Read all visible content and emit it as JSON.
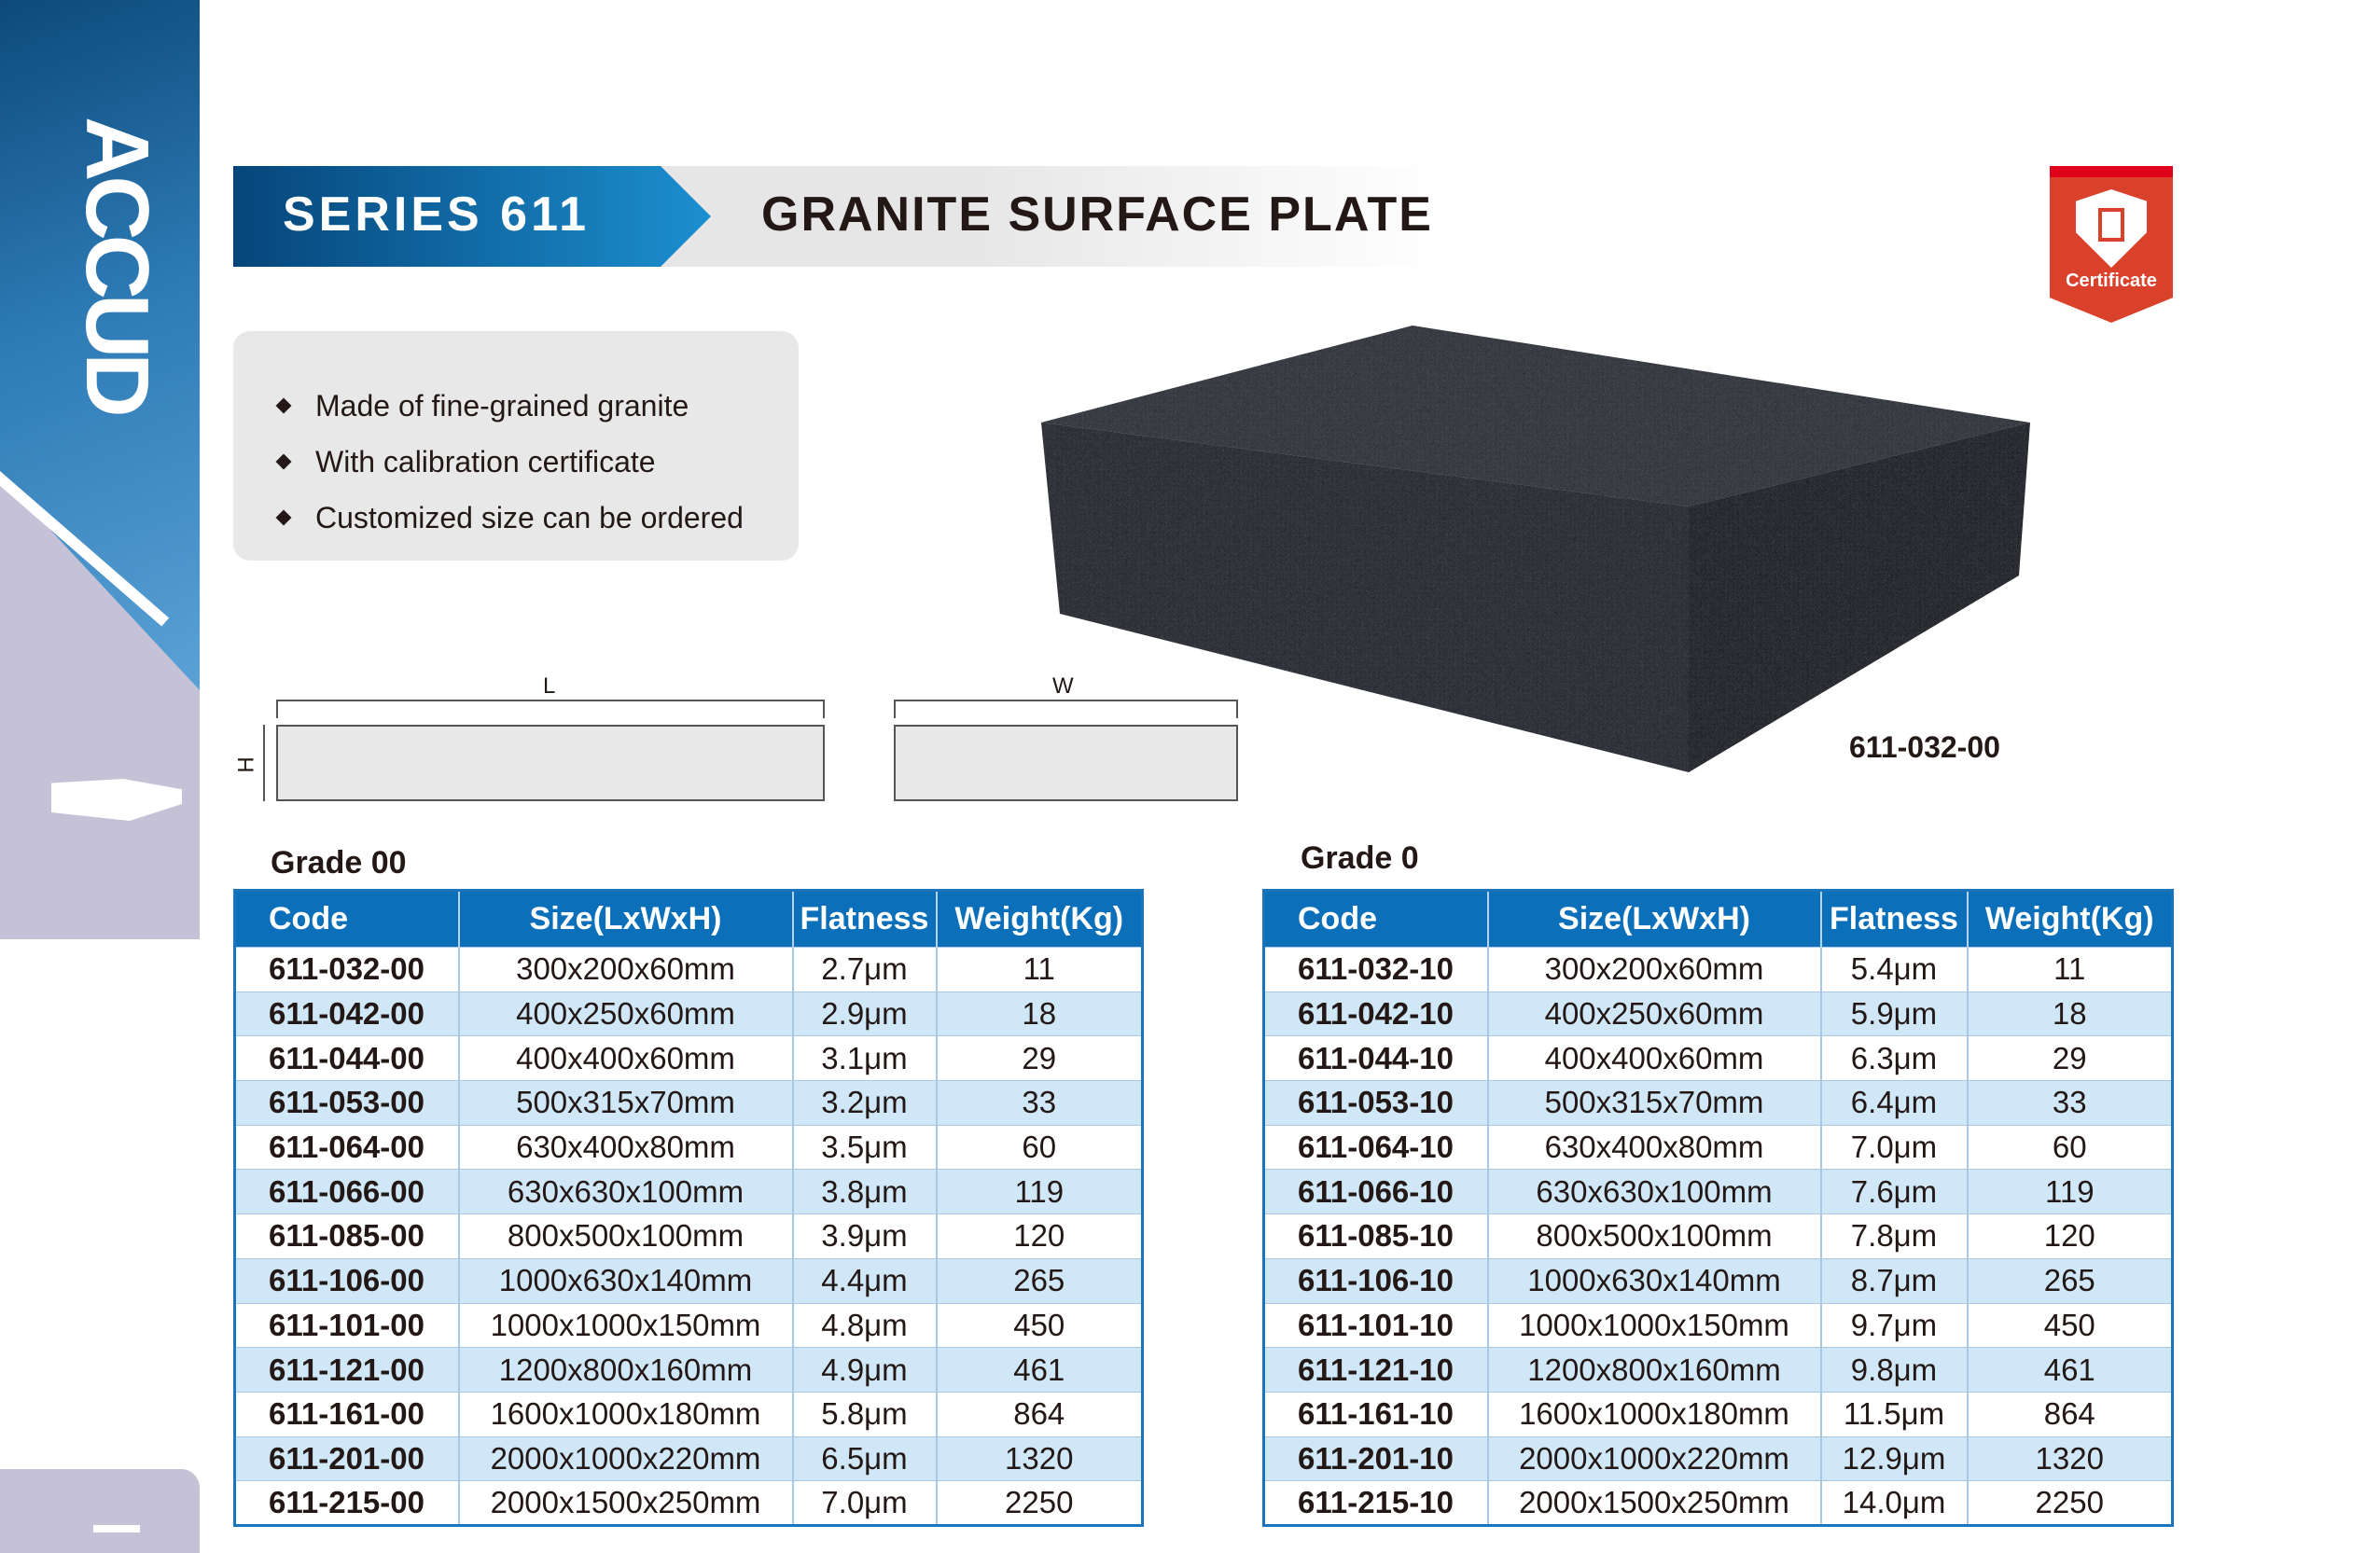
{
  "brand": "ACCUD",
  "header": {
    "series": "SERIES 611",
    "title": "GRANITE SURFACE PLATE"
  },
  "certificate": {
    "label": "Certificate",
    "icon": "certificate-shield-icon",
    "color": "#d9412b"
  },
  "features": [
    "Made of fine-grained granite",
    "With calibration certificate",
    "Customized size can be ordered"
  ],
  "product_image": {
    "code": "611-032-00"
  },
  "diagram": {
    "length": "L",
    "height": "H",
    "width": "W"
  },
  "colors": {
    "header_blue": "#0b6fba",
    "row_alt": "#cfe7f7",
    "border": "#1b75bc"
  },
  "tables": [
    {
      "grade": "Grade 00",
      "columns": [
        "Code",
        "Size(LxWxH)",
        "Flatness",
        "Weight(Kg)"
      ],
      "rows": [
        [
          "611-032-00",
          "300x200x60mm",
          "2.7μm",
          "11"
        ],
        [
          "611-042-00",
          "400x250x60mm",
          "2.9μm",
          "18"
        ],
        [
          "611-044-00",
          "400x400x60mm",
          "3.1μm",
          "29"
        ],
        [
          "611-053-00",
          "500x315x70mm",
          "3.2μm",
          "33"
        ],
        [
          "611-064-00",
          "630x400x80mm",
          "3.5μm",
          "60"
        ],
        [
          "611-066-00",
          "630x630x100mm",
          "3.8μm",
          "119"
        ],
        [
          "611-085-00",
          "800x500x100mm",
          "3.9μm",
          "120"
        ],
        [
          "611-106-00",
          "1000x630x140mm",
          "4.4μm",
          "265"
        ],
        [
          "611-101-00",
          "1000x1000x150mm",
          "4.8μm",
          "450"
        ],
        [
          "611-121-00",
          "1200x800x160mm",
          "4.9μm",
          "461"
        ],
        [
          "611-161-00",
          "1600x1000x180mm",
          "5.8μm",
          "864"
        ],
        [
          "611-201-00",
          "2000x1000x220mm",
          "6.5μm",
          "1320"
        ],
        [
          "611-215-00",
          "2000x1500x250mm",
          "7.0μm",
          "2250"
        ]
      ]
    },
    {
      "grade": "Grade 0",
      "columns": [
        "Code",
        "Size(LxWxH)",
        "Flatness",
        "Weight(Kg)"
      ],
      "rows": [
        [
          "611-032-10",
          "300x200x60mm",
          "5.4μm",
          "11"
        ],
        [
          "611-042-10",
          "400x250x60mm",
          "5.9μm",
          "18"
        ],
        [
          "611-044-10",
          "400x400x60mm",
          "6.3μm",
          "29"
        ],
        [
          "611-053-10",
          "500x315x70mm",
          "6.4μm",
          "33"
        ],
        [
          "611-064-10",
          "630x400x80mm",
          "7.0μm",
          "60"
        ],
        [
          "611-066-10",
          "630x630x100mm",
          "7.6μm",
          "119"
        ],
        [
          "611-085-10",
          "800x500x100mm",
          "7.8μm",
          "120"
        ],
        [
          "611-106-10",
          "1000x630x140mm",
          "8.7μm",
          "265"
        ],
        [
          "611-101-10",
          "1000x1000x150mm",
          "9.7μm",
          "450"
        ],
        [
          "611-121-10",
          "1200x800x160mm",
          "9.8μm",
          "461"
        ],
        [
          "611-161-10",
          "1600x1000x180mm",
          "11.5μm",
          "864"
        ],
        [
          "611-201-10",
          "2000x1000x220mm",
          "12.9μm",
          "1320"
        ],
        [
          "611-215-10",
          "2000x1500x250mm",
          "14.0μm",
          "2250"
        ]
      ]
    }
  ]
}
